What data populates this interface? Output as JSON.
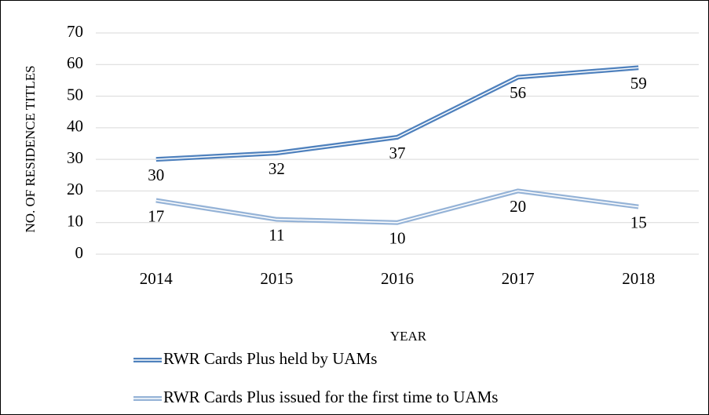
{
  "chart_data": {
    "type": "line",
    "y_label": "NO. OF RESIDENCE TITLES",
    "x_label": "YEAR",
    "categories": [
      "2014",
      "2015",
      "2016",
      "2017",
      "2018"
    ],
    "series": [
      {
        "name": "RWR Cards Plus held by UAMs",
        "color": "#4f81bd",
        "values": [
          30,
          32,
          37,
          56,
          59
        ]
      },
      {
        "name": "RWR Cards Plus issued for the first time to UAMs",
        "color": "#95b3d7",
        "values": [
          17,
          11,
          10,
          20,
          15
        ]
      }
    ],
    "ylim": [
      0,
      70
    ],
    "yticks": [
      0,
      10,
      20,
      30,
      40,
      50,
      60,
      70
    ],
    "grid": true
  }
}
